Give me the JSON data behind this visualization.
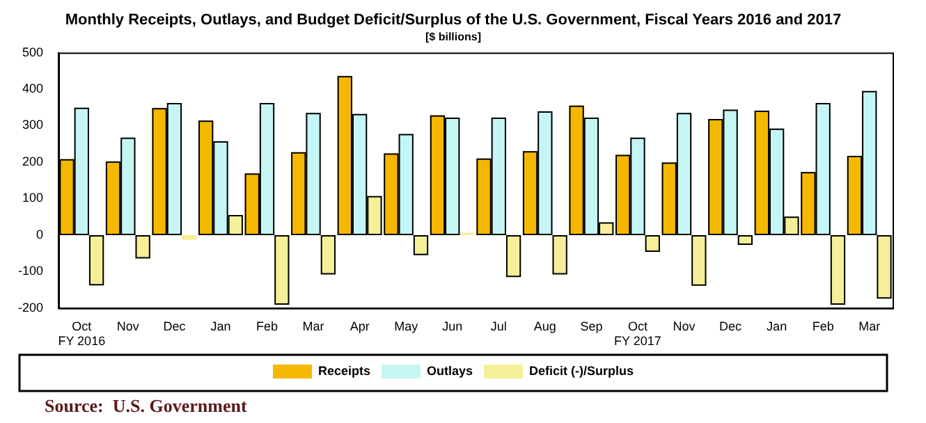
{
  "chart_data": {
    "type": "bar",
    "title": "Monthly Receipts, Outlays, and Budget Deficit/Surplus of the U.S. Government, Fiscal Years 2016 and 2017",
    "subtitle": "[$ billions]",
    "categories": [
      "Oct\nFY 2016",
      "Nov",
      "Dec",
      "Jan",
      "Feb",
      "Mar",
      "Apr",
      "May",
      "Jun",
      "Jul",
      "Aug",
      "Sep",
      "Oct\nFY 2017",
      "Nov",
      "Dec",
      "Jan",
      "Feb",
      "Mar"
    ],
    "series": [
      {
        "name": "Receipts",
        "color": "#f5b800",
        "values": [
          208,
          202,
          348,
          314,
          169,
          227,
          436,
          224,
          328,
          210,
          230,
          355,
          220,
          199,
          318,
          341,
          173,
          217
        ]
      },
      {
        "name": "Outlays",
        "color": "#c6f5f5",
        "values": [
          349,
          267,
          362,
          257,
          362,
          335,
          332,
          277,
          322,
          322,
          339,
          322,
          267,
          335,
          344,
          292,
          362,
          395
        ]
      },
      {
        "name": "Deficit (-)/Surplus",
        "color": "#f5ef9a",
        "values": [
          -138,
          -64,
          -13,
          55,
          -191,
          -108,
          107,
          -55,
          6,
          -115,
          -108,
          35,
          -46,
          -139,
          -27,
          51,
          -191,
          -174
        ]
      }
    ],
    "ylim": [
      -200,
      500
    ],
    "yticks": [
      -200,
      -100,
      0,
      100,
      200,
      300,
      400,
      500
    ],
    "grid": false,
    "legend": "bottom",
    "annotations": [
      "Source:  U.S. Government"
    ]
  }
}
